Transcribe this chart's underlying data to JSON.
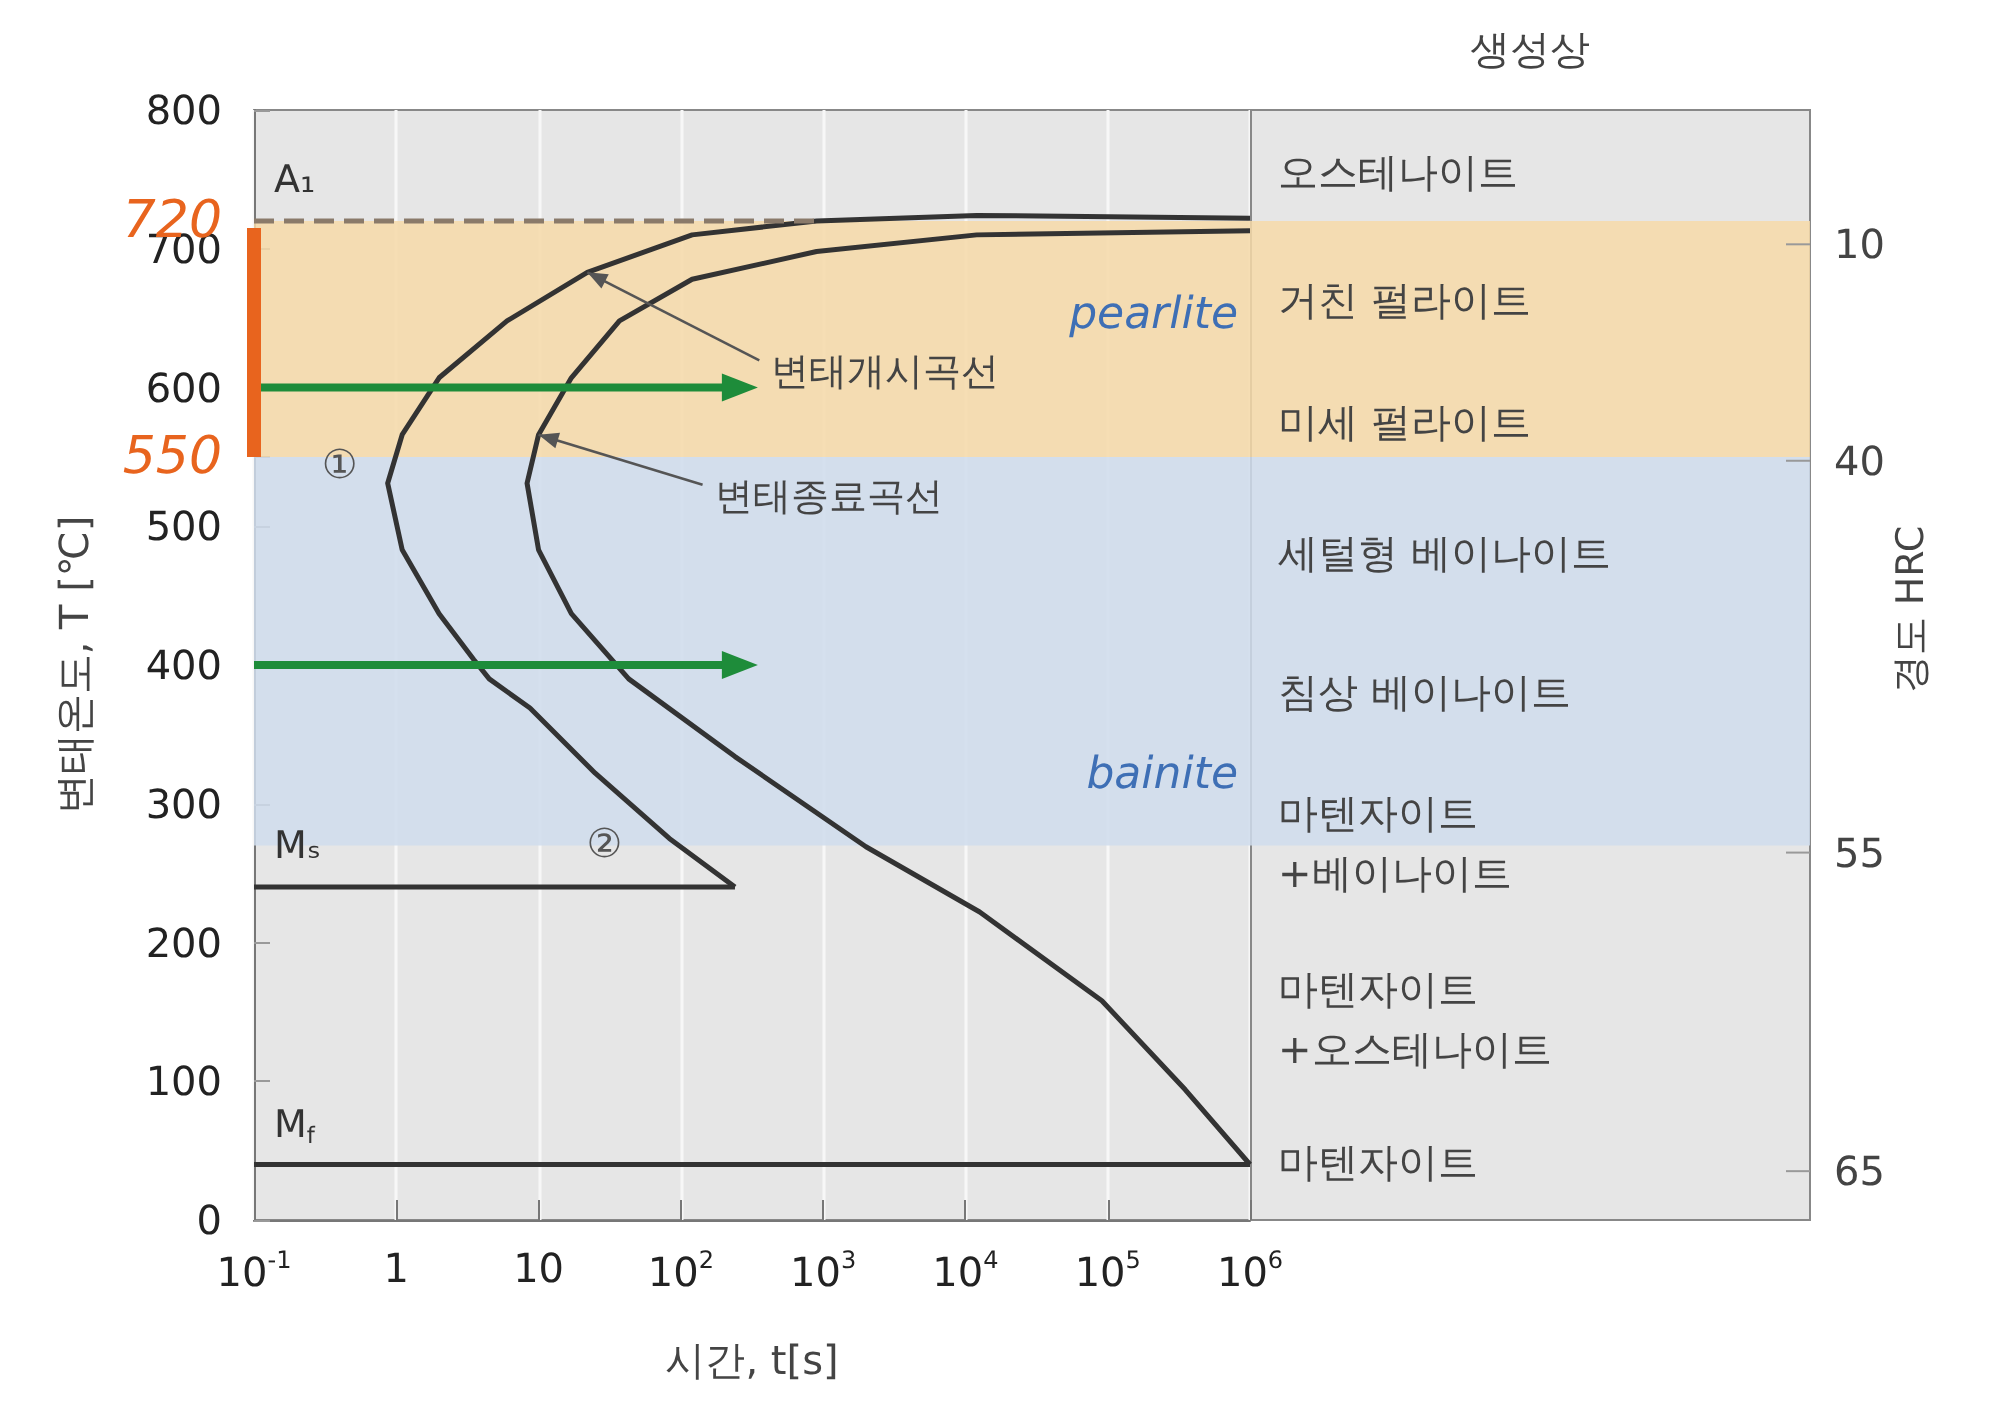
{
  "chart_data": {
    "type": "line",
    "xlabel": "시간, t[s]",
    "ylabel": "변태온도, T [℃]",
    "log": "x",
    "grid": "x",
    "legend": false,
    "marker": "none",
    "line_style": "solid",
    "xlim": [
      0.1,
      1000000
    ],
    "xticks": [
      {
        "value": 0.1,
        "label": "10$^{-1}$"
      },
      1,
      10,
      {
        "value": 100,
        "label": "10$^{2}$"
      },
      {
        "value": 1000,
        "label": "10$^{3}$"
      },
      {
        "value": 10000,
        "label": "10$^{4}$"
      },
      {
        "value": 100000,
        "label": "10$^{5}$"
      },
      {
        "value": 1000000,
        "label": "10$^{6}$"
      }
    ],
    "ylim": [
      0,
      800
    ],
    "yticks": [
      0,
      100,
      200,
      300,
      400,
      500,
      550,
      600,
      700,
      720,
      800
    ],
    "series": [
      {
        "color": "#333333",
        "x": [
          1000000,
          12000,
          900,
          120,
          22,
          6,
          2,
          1.1,
          0.87,
          1.1,
          2,
          3.5,
          4.5,
          8.7,
          25,
          83,
          240
        ],
        "values": [
          722,
          724,
          720,
          710,
          683,
          648,
          607,
          566,
          531,
          483,
          437,
          404,
          390,
          369,
          322,
          275,
          240
        ]
      },
      {
        "color": "#333333",
        "x": [
          1000000,
          12000,
          900,
          120,
          37,
          17,
          10,
          8.3,
          10,
          17,
          43,
          240,
          2000,
          12600,
          91000,
          350000,
          1000000
        ],
        "values": [
          713,
          710,
          698,
          678,
          648,
          607,
          566,
          531,
          483,
          437,
          390,
          334,
          269,
          222,
          158,
          94,
          40
        ]
      },
      {
        "name": "A₁",
        "color": "#8a7a6a",
        "line_style": "dashed",
        "x": [
          0.1,
          900
        ],
        "values": [
          720,
          720
        ]
      },
      {
        "name": "Mₛ",
        "color": "#333333",
        "x": [
          0.1,
          240
        ],
        "values": [
          240,
          240
        ]
      },
      {
        "name": "M$_{f}$",
        "color": "#333333",
        "x": [
          0.1,
          1000000
        ],
        "values": [
          40,
          40
        ]
      },
      {
        "color": "#1e8c3a",
        "marker": "triangle",
        "x": [
          0.1,
          260
        ],
        "values": [
          600,
          600
        ]
      },
      {
        "color": "#1e8c3a",
        "marker": "triangle",
        "x": [
          0.1,
          260
        ],
        "values": [
          400,
          400
        ]
      },
      {
        "color": "#e8641e",
        "x": [
          0.1,
          0.1
        ],
        "values": [
          550,
          715
        ]
      }
    ],
    "bands": [
      {
        "axis": "y",
        "from": 550,
        "to": 720,
        "label": "pearlite",
        "color": "#f6d9a8"
      },
      {
        "axis": "y",
        "from": 270,
        "to": 550,
        "label": "bainite",
        "color": "#cfdcec"
      }
    ],
    "annotations": [
      "생성상",
      "10",
      "40",
      "55",
      "65",
      {
        "text": "변태개시곡선",
        "x": 22,
        "y": 683
      },
      {
        "text": "변태종료곡선",
        "x": 10,
        "y": 566
      },
      {
        "text": "①",
        "x": 0.4,
        "y": 545
      },
      {
        "text": "②",
        "x": 29,
        "y": 272
      },
      "오스테나이트",
      "거친 펄라이트",
      "미세 펄라이트",
      "세털형 베이나이트",
      "침상 베이나이트",
      "마텐자이트\n+베이나이트",
      "마텐자이트\n+오스테나이트",
      "마텐자이트",
      "경도 HRC"
    ]
  }
}
